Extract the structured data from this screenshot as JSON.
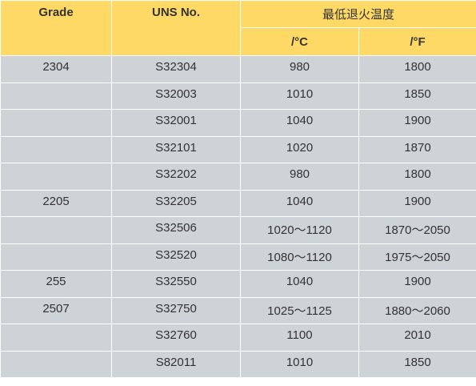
{
  "header": {
    "grade": "Grade",
    "uns": "UNS No.",
    "temp": "最低退火温度",
    "unit_c": "/°C",
    "unit_f": "/°F"
  },
  "rows": [
    {
      "grade": "2304",
      "uns": "S32304",
      "c": "980",
      "f": "1800"
    },
    {
      "grade": "",
      "uns": "S32003",
      "c": "1010",
      "f": "1850"
    },
    {
      "grade": "",
      "uns": "S32001",
      "c": "1040",
      "f": "1900"
    },
    {
      "grade": "",
      "uns": "S32101",
      "c": "1020",
      "f": "1870"
    },
    {
      "grade": "",
      "uns": "S32202",
      "c": "980",
      "f": "1800"
    },
    {
      "grade": "2205",
      "uns": "S32205",
      "c": "1040",
      "f": "1900"
    },
    {
      "grade": "",
      "uns": "S32506",
      "c": "1020～1120",
      "f": "1870～2050"
    },
    {
      "grade": "",
      "uns": "S32520",
      "c": "1080～1120",
      "f": "1975～2050"
    },
    {
      "grade": "255",
      "uns": "S32550",
      "c": "1040",
      "f": "1900"
    },
    {
      "grade": "2507",
      "uns": "S32750",
      "c": "1025～1125",
      "f": "1880～2060"
    },
    {
      "grade": "",
      "uns": "S32760",
      "c": "1100",
      "f": "2010"
    },
    {
      "grade": "",
      "uns": "S82011",
      "c": "1010",
      "f": "1850"
    }
  ]
}
